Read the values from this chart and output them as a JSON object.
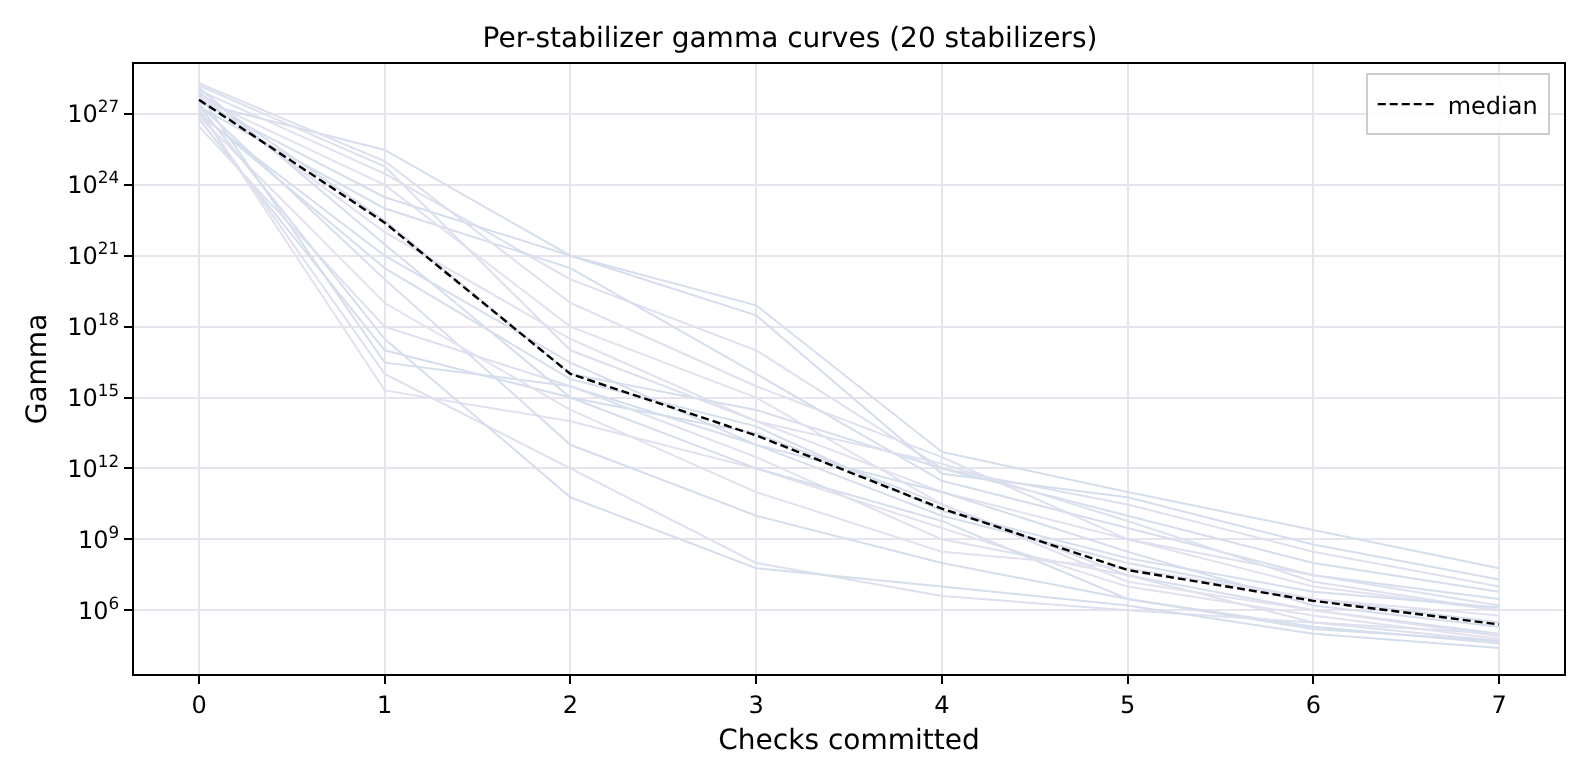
{
  "chart_data": {
    "type": "line",
    "title": "Per-stabilizer gamma curves (20 stabilizers)",
    "xlabel": "Checks committed",
    "ylabel": "Gamma",
    "x": [
      0,
      1,
      2,
      3,
      4,
      5,
      6,
      7
    ],
    "xlim": [
      -0.35,
      7.35
    ],
    "xticks": [
      0,
      1,
      2,
      3,
      4,
      5,
      6,
      7
    ],
    "ylim": [
      2000.0,
      1.3e+29
    ],
    "log": true,
    "yticks": [
      {
        "value": 1000000.0,
        "label": "10$^{6}$"
      },
      {
        "value": 1000000000.0,
        "label": "10$^{9}$"
      },
      {
        "value": 1000000000000.0,
        "label": "10$^{12}$"
      },
      {
        "value": 1000000000000000.0,
        "label": "10$^{15}$"
      },
      {
        "value": 1e+18,
        "label": "10$^{18}$"
      },
      {
        "value": 1e+21,
        "label": "10$^{21}$"
      },
      {
        "value": 1e+24,
        "label": "10$^{24}$"
      },
      {
        "value": 1e+27,
        "label": "10$^{27}$"
      }
    ],
    "grid": true,
    "legend": "top right",
    "marker": "none",
    "line_style": "solid",
    "series": [
      {
        "color": "#d5deec",
        "values": [
          3e+27,
          3e+25,
          1e+21,
          8e+18,
          5000000000000.0,
          100000000000.0,
          2500000000.0,
          60000000.0
        ]
      },
      {
        "color": "#dde0ee",
        "values": [
          1e+28,
          3e+24,
          1e+20,
          1e+17,
          1000000000000.0,
          30000000000.0,
          300000000.0,
          10000000.0
        ]
      },
      {
        "color": "#d5deec",
        "values": [
          2e+27,
          1e+23,
          3e+20,
          1e+16,
          300000000000.0,
          3000000000.0,
          30000000.0,
          3000000.0
        ]
      },
      {
        "color": "#e3e0ef",
        "values": [
          6e+27,
          1e+22,
          3e+17,
          100000000000000.0,
          100000000000.0,
          1000000000.0,
          10000000.0,
          1000000.0
        ]
      },
      {
        "color": "#d5deec",
        "values": [
          1e+27,
          1e+21,
          3e+16,
          10000000000000.0,
          10000000000.0,
          100000000.0,
          3000000.0,
          300000.0
        ]
      },
      {
        "color": "#dde0ee",
        "values": [
          2e+28,
          1e+25,
          1e+19,
          3000000000000000.0,
          3000000000000.0,
          1000000000.0,
          30000000.0,
          1600000.0
        ]
      },
      {
        "color": "#d5deec",
        "values": [
          6e+26,
          1e+17,
          1000000000000000.0,
          30000000000000.0,
          30000000000.0,
          30000000.0,
          1000000.0,
          100000.0
        ]
      },
      {
        "color": "#d5deec",
        "values": [
          7e+27,
          3e+16,
          3000000000000000.0,
          10000000000000.0,
          100000000000.0,
          300000000.0,
          1600000.0,
          200000.0
        ]
      },
      {
        "color": "#e3e0ef",
        "values": [
          1.6e+27,
          2000000000000000.0,
          100000000000000.0,
          1000000000000.0,
          3000000000.0,
          10000000.0,
          600000.0,
          60000.0
        ]
      },
      {
        "color": "#d5deec",
        "values": [
          8e+27,
          3e+22,
          1e+16,
          300000000000000.0,
          1000000000000.0,
          10000000000.0,
          100000000.0,
          6000000.0
        ]
      },
      {
        "color": "#dde0ee",
        "values": [
          3e+26,
          1e+18,
          3000000000000000.0,
          3000000000000.0,
          1000000000.0,
          30000000.0,
          300000.0,
          50000.0
        ]
      },
      {
        "color": "#d5deec",
        "values": [
          2.5e+27,
          1e+20,
          10000000000000.0,
          10000000000.0,
          100000000.0,
          3000000.0,
          160000.0,
          50000.0
        ]
      },
      {
        "color": "#e3e0ef",
        "values": [
          5e+27,
          1e+24,
          1e+18,
          1000000000000000.0,
          30000000000.0,
          16000000.0,
          1000000.0,
          80000.0
        ]
      },
      {
        "color": "#d5deec",
        "values": [
          1.3e+28,
          3e+21,
          1000000000000000.0,
          1000000000000.0,
          6000000000.0,
          3000000.0,
          200000.0,
          40000.0
        ]
      },
      {
        "color": "#dde0ee",
        "values": [
          1.3e+27,
          1e+16,
          1000000000000.0,
          100000000.0,
          4000000.0,
          1000000.0,
          300000.0,
          100000.0
        ]
      },
      {
        "color": "#d5deec",
        "values": [
          3.5e+27,
          3e+23,
          1e+21,
          3e+18,
          600000000000.0,
          60000000000.0,
          600000000.0,
          20000000.0
        ]
      },
      {
        "color": "#e3e0ef",
        "values": [
          8e+26,
          1e+19,
          300000000000000.0,
          100000000000.0,
          300000000.0,
          60000000.0,
          3000000.0,
          600000.0
        ]
      },
      {
        "color": "#d5deec",
        "values": [
          2.2e+27,
          3e+17,
          60000000000.0,
          60000000.0,
          10000000.0,
          1600000.0,
          100000.0,
          25000.0
        ]
      },
      {
        "color": "#dde0ee",
        "values": [
          1.6e+28,
          6e+24,
          1e+17,
          100000000000000.0,
          1600000000000.0,
          6000000000.0,
          16000000.0,
          1000000.0
        ]
      },
      {
        "color": "#d5deec",
        "values": [
          1.1e+27,
          3e+20,
          6000000000000000.0,
          60000000000000.0,
          16000000000.0,
          160000000.0,
          6000000.0,
          1300000.0
        ]
      },
      {
        "name": "median",
        "color": "#000000",
        "line_style": "dashed",
        "values": [
          4e+27,
          2.5e+22,
          1e+16,
          25000000000000.0,
          20000000000.0,
          50000000.0,
          2500000.0,
          250000.0
        ]
      }
    ]
  }
}
